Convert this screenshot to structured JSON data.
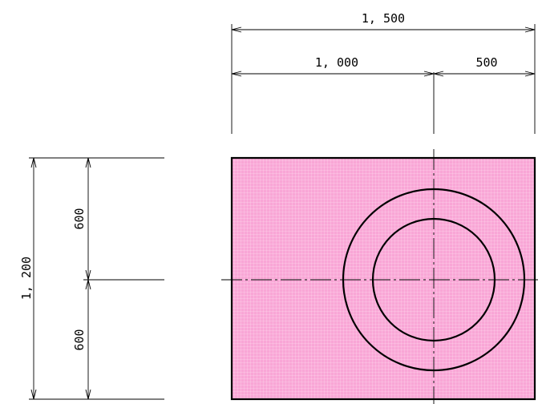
{
  "dimensions": {
    "overall_width": "1, 500",
    "left_width": "1, 000",
    "right_width": "500",
    "overall_height": "1, 200",
    "upper_height": "600",
    "lower_height": "600"
  },
  "colors": {
    "slab_fill": "#f9a6d6",
    "grid": "#ffffff",
    "lines": "#000000"
  }
}
